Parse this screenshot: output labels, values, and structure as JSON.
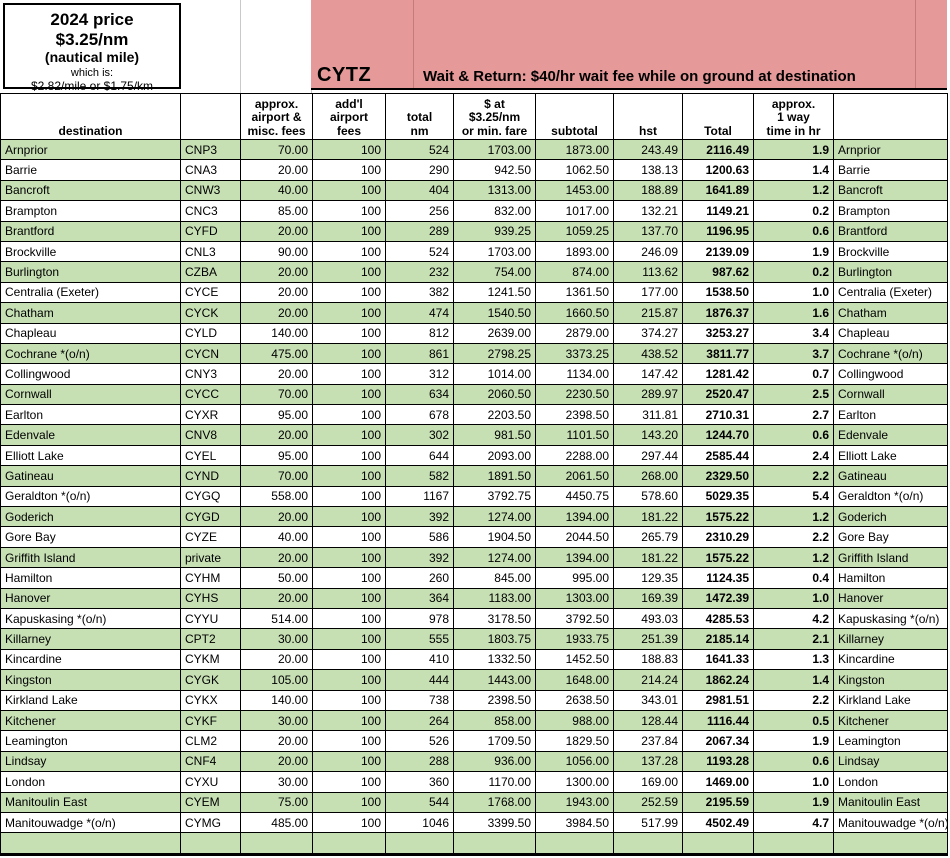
{
  "colors": {
    "banner_pink": "#e59999",
    "row_green": "#c6e0b4",
    "grid_black": "#000000"
  },
  "pricing_box": {
    "line1": "2024 price",
    "line2": "$3.25/nm",
    "line3": "(nautical mile)",
    "line4": "which is:",
    "line5": "$2.82/mile or $1.75/km"
  },
  "banner": {
    "origin_code": "CYTZ",
    "wait_note": "Wait & Return: $40/hr wait fee while on ground at destination"
  },
  "table": {
    "col_keys": [
      "destination",
      "code",
      "airport-misc-fees",
      "addl-airport-fees",
      "total-nm",
      "rate-or-min-fare",
      "subtotal",
      "hst",
      "total",
      "time-hr",
      "destination-right"
    ],
    "headers": [
      [
        "destination"
      ],
      [
        ""
      ],
      [
        "approx.",
        "airport &",
        "misc. fees"
      ],
      [
        "add'l",
        "airport",
        "fees"
      ],
      [
        "total",
        "nm"
      ],
      [
        "$ at",
        "$3.25/nm",
        "or min. fare"
      ],
      [
        "subtotal"
      ],
      [
        "hst"
      ],
      [
        "Total"
      ],
      [
        "approx.",
        "1 way",
        "time in hr"
      ],
      [
        ""
      ]
    ],
    "rows": [
      [
        "Arnprior",
        "CNP3",
        "70.00",
        "100",
        "524",
        "1703.00",
        "1873.00",
        "243.49",
        "2116.49",
        "1.9"
      ],
      [
        "Barrie",
        "CNA3",
        "20.00",
        "100",
        "290",
        "942.50",
        "1062.50",
        "138.13",
        "1200.63",
        "1.4"
      ],
      [
        "Bancroft",
        "CNW3",
        "40.00",
        "100",
        "404",
        "1313.00",
        "1453.00",
        "188.89",
        "1641.89",
        "1.2"
      ],
      [
        "Brampton",
        "CNC3",
        "85.00",
        "100",
        "256",
        "832.00",
        "1017.00",
        "132.21",
        "1149.21",
        "0.2"
      ],
      [
        "Brantford",
        "CYFD",
        "20.00",
        "100",
        "289",
        "939.25",
        "1059.25",
        "137.70",
        "1196.95",
        "0.6"
      ],
      [
        "Brockville",
        "CNL3",
        "90.00",
        "100",
        "524",
        "1703.00",
        "1893.00",
        "246.09",
        "2139.09",
        "1.9"
      ],
      [
        "Burlington",
        "CZBA",
        "20.00",
        "100",
        "232",
        "754.00",
        "874.00",
        "113.62",
        "987.62",
        "0.2"
      ],
      [
        "Centralia (Exeter)",
        "CYCE",
        "20.00",
        "100",
        "382",
        "1241.50",
        "1361.50",
        "177.00",
        "1538.50",
        "1.0"
      ],
      [
        "Chatham",
        "CYCK",
        "20.00",
        "100",
        "474",
        "1540.50",
        "1660.50",
        "215.87",
        "1876.37",
        "1.6"
      ],
      [
        "Chapleau",
        "CYLD",
        "140.00",
        "100",
        "812",
        "2639.00",
        "2879.00",
        "374.27",
        "3253.27",
        "3.4"
      ],
      [
        "Cochrane *(o/n)",
        "CYCN",
        "475.00",
        "100",
        "861",
        "2798.25",
        "3373.25",
        "438.52",
        "3811.77",
        "3.7"
      ],
      [
        "Collingwood",
        "CNY3",
        "20.00",
        "100",
        "312",
        "1014.00",
        "1134.00",
        "147.42",
        "1281.42",
        "0.7"
      ],
      [
        "Cornwall",
        "CYCC",
        "70.00",
        "100",
        "634",
        "2060.50",
        "2230.50",
        "289.97",
        "2520.47",
        "2.5"
      ],
      [
        "Earlton",
        "CYXR",
        "95.00",
        "100",
        "678",
        "2203.50",
        "2398.50",
        "311.81",
        "2710.31",
        "2.7"
      ],
      [
        "Edenvale",
        "CNV8",
        "20.00",
        "100",
        "302",
        "981.50",
        "1101.50",
        "143.20",
        "1244.70",
        "0.6"
      ],
      [
        "Elliott Lake",
        "CYEL",
        "95.00",
        "100",
        "644",
        "2093.00",
        "2288.00",
        "297.44",
        "2585.44",
        "2.4"
      ],
      [
        "Gatineau",
        "CYND",
        "70.00",
        "100",
        "582",
        "1891.50",
        "2061.50",
        "268.00",
        "2329.50",
        "2.2"
      ],
      [
        "Geraldton *(o/n)",
        "CYGQ",
        "558.00",
        "100",
        "1167",
        "3792.75",
        "4450.75",
        "578.60",
        "5029.35",
        "5.4"
      ],
      [
        "Goderich",
        "CYGD",
        "20.00",
        "100",
        "392",
        "1274.00",
        "1394.00",
        "181.22",
        "1575.22",
        "1.2"
      ],
      [
        "Gore Bay",
        "CYZE",
        "40.00",
        "100",
        "586",
        "1904.50",
        "2044.50",
        "265.79",
        "2310.29",
        "2.2"
      ],
      [
        "Griffith Island",
        "private",
        "20.00",
        "100",
        "392",
        "1274.00",
        "1394.00",
        "181.22",
        "1575.22",
        "1.2"
      ],
      [
        "Hamilton",
        "CYHM",
        "50.00",
        "100",
        "260",
        "845.00",
        "995.00",
        "129.35",
        "1124.35",
        "0.4"
      ],
      [
        "Hanover",
        "CYHS",
        "20.00",
        "100",
        "364",
        "1183.00",
        "1303.00",
        "169.39",
        "1472.39",
        "1.0"
      ],
      [
        "Kapuskasing *(o/n)",
        "CYYU",
        "514.00",
        "100",
        "978",
        "3178.50",
        "3792.50",
        "493.03",
        "4285.53",
        "4.2"
      ],
      [
        "Killarney",
        "CPT2",
        "30.00",
        "100",
        "555",
        "1803.75",
        "1933.75",
        "251.39",
        "2185.14",
        "2.1"
      ],
      [
        "Kincardine",
        "CYKM",
        "20.00",
        "100",
        "410",
        "1332.50",
        "1452.50",
        "188.83",
        "1641.33",
        "1.3"
      ],
      [
        "Kingston",
        "CYGK",
        "105.00",
        "100",
        "444",
        "1443.00",
        "1648.00",
        "214.24",
        "1862.24",
        "1.4"
      ],
      [
        "Kirkland Lake",
        "CYKX",
        "140.00",
        "100",
        "738",
        "2398.50",
        "2638.50",
        "343.01",
        "2981.51",
        "2.2"
      ],
      [
        "Kitchener",
        "CYKF",
        "30.00",
        "100",
        "264",
        "858.00",
        "988.00",
        "128.44",
        "1116.44",
        "0.5"
      ],
      [
        "Leamington",
        "CLM2",
        "20.00",
        "100",
        "526",
        "1709.50",
        "1829.50",
        "237.84",
        "2067.34",
        "1.9"
      ],
      [
        "Lindsay",
        "CNF4",
        "20.00",
        "100",
        "288",
        "936.00",
        "1056.00",
        "137.28",
        "1193.28",
        "0.6"
      ],
      [
        "London",
        "CYXU",
        "30.00",
        "100",
        "360",
        "1170.00",
        "1300.00",
        "169.00",
        "1469.00",
        "1.0"
      ],
      [
        "Manitoulin East",
        "CYEM",
        "75.00",
        "100",
        "544",
        "1768.00",
        "1943.00",
        "252.59",
        "2195.59",
        "1.9"
      ],
      [
        "Manitouwadge *(o/n)",
        "CYMG",
        "485.00",
        "100",
        "1046",
        "3399.50",
        "3984.50",
        "517.99",
        "4502.49",
        "4.7"
      ]
    ],
    "trailing_empty_row": true
  }
}
